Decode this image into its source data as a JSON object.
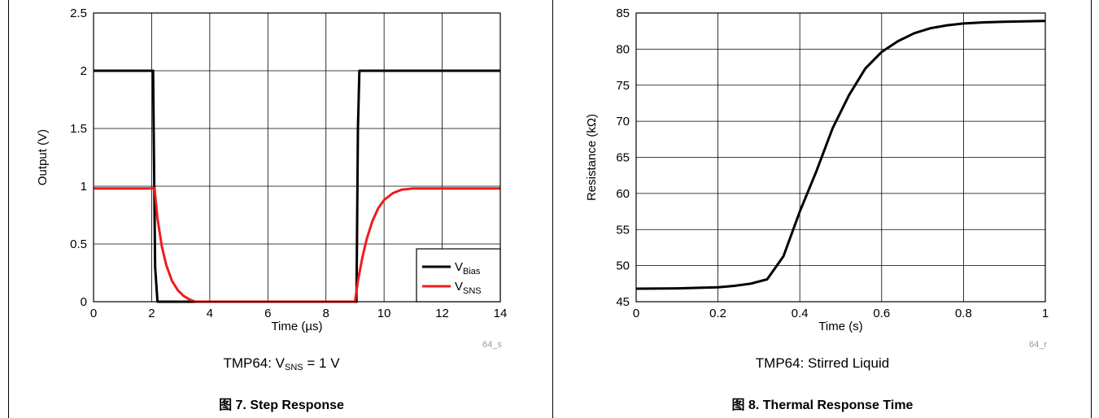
{
  "chart_data": [
    {
      "type": "line",
      "title": "",
      "xlabel": "Time (µs)",
      "ylabel": "Output (V)",
      "xlim": [
        0,
        14
      ],
      "ylim": [
        0,
        2.5
      ],
      "xticks": [
        "0",
        "2",
        "4",
        "6",
        "8",
        "10",
        "12",
        "14"
      ],
      "yticks": [
        "0",
        "0.5",
        "1",
        "1.5",
        "2",
        "2.5"
      ],
      "grid": true,
      "legend_position": "bottom-right",
      "condition_prefix": "TMP64: V",
      "condition_sub": "SNS",
      "condition_suffix": " = 1 V",
      "figure_code": "64_s",
      "caption": "图 7. Step Response",
      "series": [
        {
          "name": "V",
          "name_sub": "Bias",
          "color": "#000000",
          "x": [
            0,
            2.05,
            2.07,
            2.12,
            2.2,
            9.05,
            9.1,
            9.15,
            9.3,
            14
          ],
          "y": [
            2.0,
            2.0,
            1.5,
            0.3,
            0.0,
            0.0,
            1.5,
            2.0,
            2.0,
            2.0
          ]
        },
        {
          "name": "V",
          "name_sub": "SNS",
          "color": "#ee1c1c",
          "x": [
            0,
            2.1,
            2.2,
            2.35,
            2.5,
            2.7,
            2.9,
            3.1,
            3.3,
            3.5,
            9.0,
            9.1,
            9.25,
            9.4,
            9.6,
            9.8,
            10.0,
            10.3,
            10.6,
            11.0,
            11.5,
            14
          ],
          "y": [
            0.98,
            0.98,
            0.72,
            0.48,
            0.32,
            0.18,
            0.1,
            0.05,
            0.02,
            0.0,
            0.0,
            0.18,
            0.38,
            0.54,
            0.7,
            0.81,
            0.88,
            0.94,
            0.97,
            0.98,
            0.98,
            0.98
          ]
        }
      ]
    },
    {
      "type": "line",
      "title": "",
      "xlabel": "Time (s)",
      "ylabel": "Resistance (kΩ)",
      "xlim": [
        0,
        1
      ],
      "ylim": [
        45,
        85
      ],
      "xticks": [
        "0",
        "0.2",
        "0.4",
        "0.6",
        "0.8",
        "1"
      ],
      "yticks": [
        "45",
        "50",
        "55",
        "60",
        "65",
        "70",
        "75",
        "80",
        "85"
      ],
      "grid": true,
      "condition": "TMP64: Stirred Liquid",
      "figure_code": "64_r",
      "caption": "图 8. Thermal Response Time",
      "series": [
        {
          "color": "#000000",
          "x": [
            0,
            0.1,
            0.2,
            0.24,
            0.28,
            0.32,
            0.36,
            0.4,
            0.44,
            0.48,
            0.52,
            0.56,
            0.6,
            0.64,
            0.68,
            0.72,
            0.76,
            0.8,
            0.85,
            0.9,
            0.95,
            1.0
          ],
          "y": [
            46.8,
            46.85,
            47.0,
            47.2,
            47.5,
            48.1,
            51.3,
            57.5,
            63.0,
            69.0,
            73.6,
            77.3,
            79.6,
            81.1,
            82.2,
            82.9,
            83.3,
            83.55,
            83.7,
            83.8,
            83.85,
            83.9
          ]
        }
      ]
    }
  ]
}
